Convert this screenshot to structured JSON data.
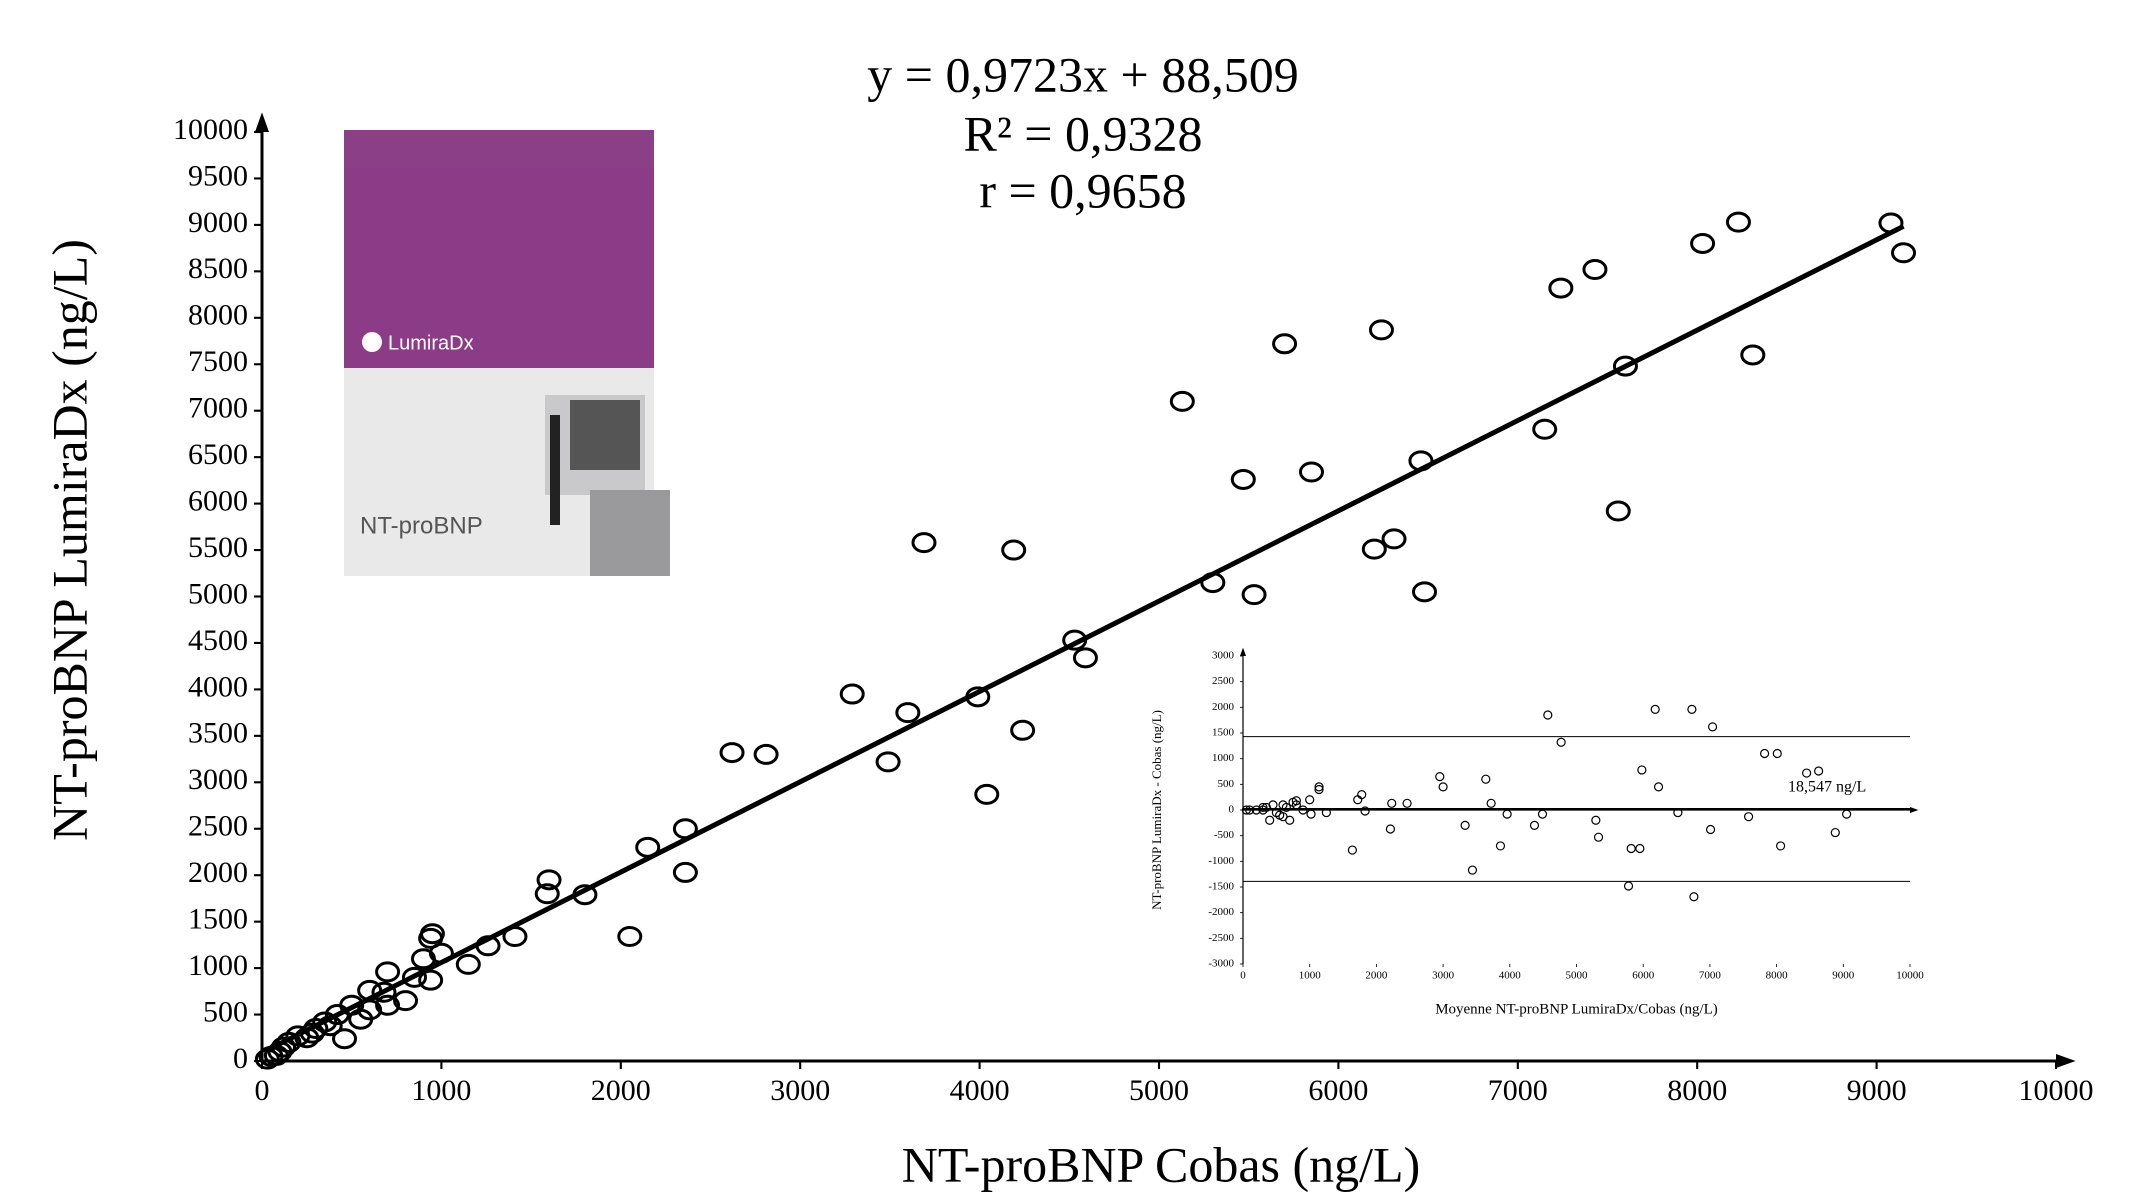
{
  "chart_data": [
    {
      "type": "scatter",
      "equation": "y = 0,9723x + 88,509",
      "r_squared": "R² = 0,9328",
      "r": "r = 0,9658",
      "x_label": "NT-proBNP Cobas (ng/L)",
      "y_label": "NT-proBNP LumiraDx (ng/L)",
      "xlim": [
        0,
        10000
      ],
      "ylim": [
        0,
        10000
      ],
      "xticks": [
        0,
        1000,
        2000,
        3000,
        4000,
        5000,
        6000,
        7000,
        8000,
        9000,
        10000
      ],
      "yticks": [
        0,
        500,
        1000,
        1500,
        2000,
        2500,
        3000,
        3500,
        4000,
        4500,
        5000,
        5500,
        6000,
        6500,
        7000,
        7500,
        8000,
        8500,
        9000,
        9500,
        10000
      ],
      "trendline": {
        "slope": 0.9723,
        "intercept": 88.509
      },
      "color": "#000000",
      "product_image": {
        "brand": "LumiraDx",
        "label": "NT-proBNP"
      },
      "x": [
        9080,
        9150,
        8230,
        8030,
        7430,
        7240,
        7600,
        8310,
        7150,
        7560,
        6240,
        5700,
        5130,
        5850,
        5470,
        6460,
        6310,
        6200,
        6480,
        5300,
        5530,
        3690,
        4190,
        4530,
        4590,
        3290,
        3600,
        3990,
        4240,
        4040,
        2620,
        2810,
        3490,
        2360,
        2150,
        2360,
        2050,
        1600,
        1590,
        1800,
        1410,
        1260,
        1150,
        950,
        940,
        1000,
        900,
        940,
        850,
        800,
        700,
        680,
        600,
        600,
        500,
        460,
        420,
        350,
        300,
        280,
        250,
        200,
        150,
        120,
        100,
        80,
        50,
        30,
        700,
        550,
        380
      ],
      "values": [
        9020,
        8700,
        9030,
        8800,
        8520,
        8320,
        7480,
        7600,
        6800,
        5920,
        7870,
        7720,
        7100,
        6340,
        6260,
        6460,
        5620,
        5510,
        5050,
        5150,
        5020,
        5580,
        5500,
        4530,
        4340,
        3950,
        3750,
        3920,
        3560,
        2870,
        3320,
        3300,
        3220,
        2500,
        2300,
        2030,
        1340,
        1950,
        1800,
        1790,
        1340,
        1240,
        1040,
        1370,
        1320,
        1160,
        1100,
        870,
        900,
        650,
        960,
        740,
        760,
        550,
        600,
        240,
        500,
        420,
        350,
        300,
        250,
        270,
        200,
        150,
        100,
        60,
        50,
        20,
        600,
        450,
        380
      ]
    },
    {
      "type": "scatter",
      "x_label": "Moyenne NT-proBNP LumiraDx/Cobas   (ng/L)",
      "y_label": "NT-proBNP LumiraDx - Cobas (ng/L)",
      "xlim": [
        0,
        10000
      ],
      "ylim": [
        -3000,
        3000
      ],
      "xticks": [
        0,
        1000,
        2000,
        3000,
        4000,
        5000,
        6000,
        7000,
        8000,
        9000,
        10000
      ],
      "yticks": [
        -3000,
        -2500,
        -2000,
        -1500,
        -1000,
        -500,
        0,
        500,
        1000,
        1500,
        2000,
        2500,
        3000
      ],
      "mean": 18.547,
      "mean_label": "18,547 ng/L",
      "limits": [
        1430,
        -1390
      ],
      "color": "#000000",
      "x": [
        4570,
        4770,
        6180,
        6730,
        7040,
        5980,
        3640,
        2950,
        3000,
        6230,
        8010,
        7820,
        8630,
        8450,
        1140,
        1140,
        1720,
        1780,
        2230,
        2460,
        3720,
        3960,
        4490,
        5290,
        5330,
        5820,
        5950,
        6520,
        7010,
        7580,
        8060,
        8880,
        9050,
        3330,
        4370,
        3860,
        3440,
        5780,
        6760,
        2210,
        1640,
        1830,
        1000,
        1020,
        1250,
        900,
        800,
        750,
        700,
        650,
        600,
        550,
        500,
        450,
        400,
        350,
        300,
        200,
        100,
        50,
        600,
        800,
        300
      ],
      "values": [
        1850,
        1320,
        1960,
        1960,
        1620,
        780,
        600,
        650,
        450,
        450,
        1100,
        1100,
        760,
        720,
        450,
        400,
        200,
        300,
        130,
        130,
        130,
        -80,
        -80,
        -200,
        -530,
        -750,
        -750,
        -50,
        -380,
        -130,
        -700,
        -440,
        -80,
        -300,
        -300,
        -700,
        -1170,
        -1480,
        -1690,
        -370,
        -780,
        -20,
        200,
        -80,
        -50,
        0,
        100,
        150,
        -200,
        50,
        100,
        -100,
        -50,
        100,
        -200,
        50,
        0,
        0,
        0,
        0,
        -130,
        180,
        50
      ]
    }
  ]
}
